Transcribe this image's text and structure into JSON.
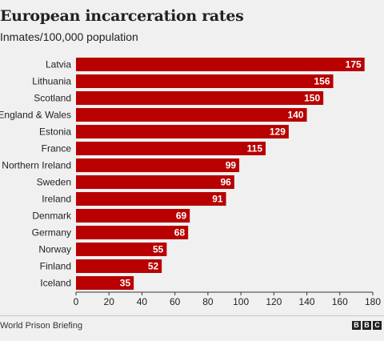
{
  "chart_data": {
    "type": "bar",
    "orientation": "horizontal",
    "title": "European incarceration rates",
    "subtitle": "Inmates/100,000 population",
    "categories": [
      "Latvia",
      "Lithuania",
      "Scotland",
      "England & Wales",
      "Estonia",
      "France",
      "Northern Ireland",
      "Sweden",
      "Ireland",
      "Denmark",
      "Germany",
      "Norway",
      "Finland",
      "Iceland"
    ],
    "values": [
      175,
      156,
      150,
      140,
      129,
      115,
      99,
      96,
      91,
      69,
      68,
      55,
      52,
      35
    ],
    "xlim": [
      0,
      180
    ],
    "xticks": [
      0,
      20,
      40,
      60,
      80,
      100,
      120,
      140,
      160,
      180
    ],
    "bar_color": "#b80000",
    "data_labels": true,
    "grid": false
  },
  "footer": {
    "source": "World Prison Briefing",
    "logo_letters": [
      "B",
      "B",
      "C"
    ]
  }
}
